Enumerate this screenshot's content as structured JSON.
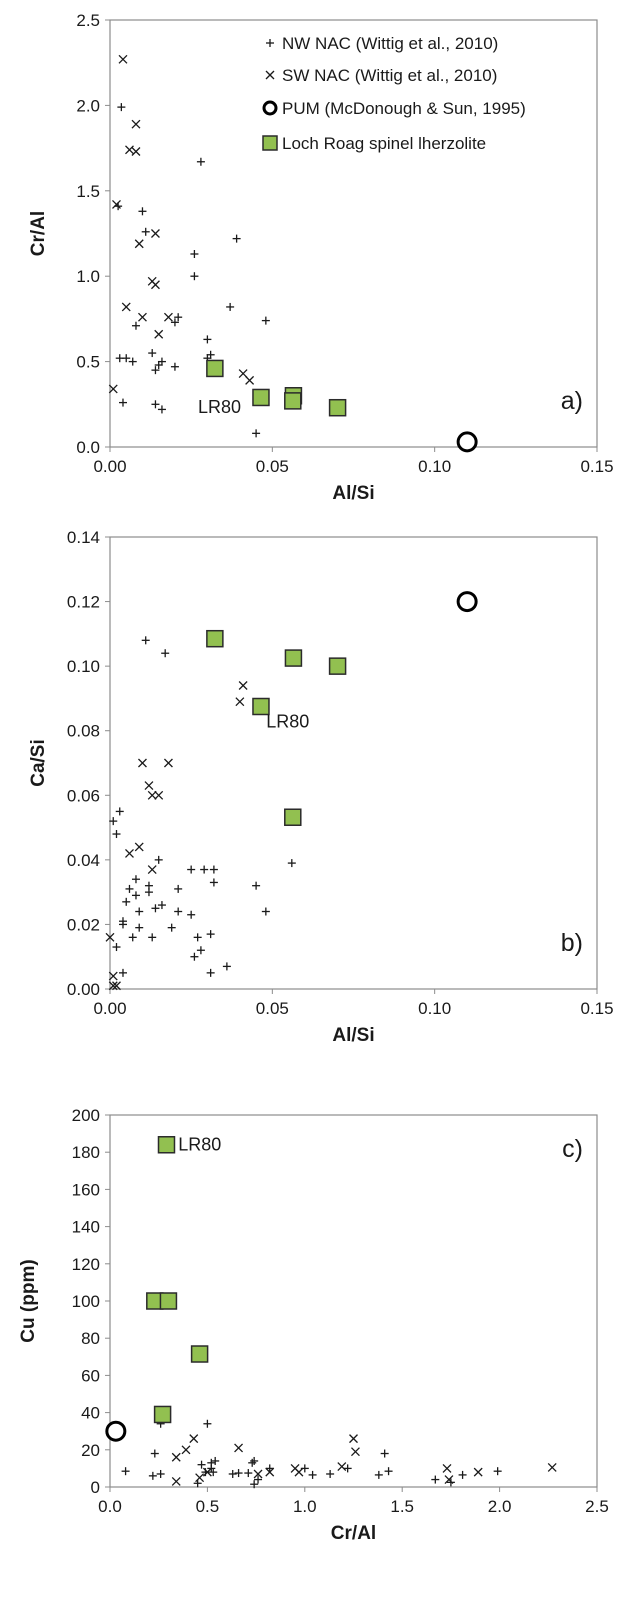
{
  "colors": {
    "frame": "#8c8c8c",
    "marker": "#1a1a1a",
    "lochFill": "#92c050",
    "lochStroke": "#2b2b2b"
  },
  "legend": {
    "nw": "NW NAC (Wittig et al., 2010)",
    "sw": "SW NAC (Wittig et al., 2010)",
    "pum": "PUM (McDonough & Sun, 1995)",
    "loch": "Loch Roag spinel lherzolite"
  },
  "chart_data": [
    {
      "type": "scatter",
      "panel_label": "a)",
      "xlabel": "Al/Si",
      "ylabel": "Cr/Al",
      "xlim": [
        0,
        0.15
      ],
      "ylim": [
        0,
        2.5
      ],
      "xticks": [
        "0.00",
        "0.05",
        "0.10",
        "0.15"
      ],
      "yticks": [
        "0.0",
        "0.5",
        "1.0",
        "1.5",
        "2.0",
        "2.5"
      ],
      "annotation": {
        "text": "LR80",
        "x": 0.0465,
        "y": 0.2
      },
      "legend_position": "top-right",
      "series": [
        {
          "name": "NW NAC (Wittig et al., 2010)",
          "marker": "plus",
          "points": [
            [
              0.0035,
              1.99
            ],
            [
              0.028,
              1.67
            ],
            [
              0.0025,
              1.41
            ],
            [
              0.01,
              1.38
            ],
            [
              0.039,
              1.22
            ],
            [
              0.011,
              1.26
            ],
            [
              0.026,
              1.13
            ],
            [
              0.026,
              1.0
            ],
            [
              0.037,
              0.82
            ],
            [
              0.048,
              0.74
            ],
            [
              0.021,
              0.76
            ],
            [
              0.02,
              0.73
            ],
            [
              0.03,
              0.63
            ],
            [
              0.008,
              0.71
            ],
            [
              0.031,
              0.54
            ],
            [
              0.013,
              0.55
            ],
            [
              0.02,
              0.47
            ],
            [
              0.015,
              0.48
            ],
            [
              0.016,
              0.5
            ],
            [
              0.003,
              0.52
            ],
            [
              0.005,
              0.52
            ],
            [
              0.014,
              0.45
            ],
            [
              0.007,
              0.5
            ],
            [
              0.03,
              0.52
            ],
            [
              0.004,
              0.26
            ],
            [
              0.014,
              0.25
            ],
            [
              0.016,
              0.22
            ],
            [
              0.045,
              0.08
            ],
            [
              0.057,
              0.26
            ]
          ]
        },
        {
          "name": "SW NAC (Wittig et al., 2010)",
          "marker": "cross",
          "points": [
            [
              0.004,
              2.27
            ],
            [
              0.008,
              1.89
            ],
            [
              0.006,
              1.74
            ],
            [
              0.008,
              1.73
            ],
            [
              0.002,
              1.42
            ],
            [
              0.014,
              1.25
            ],
            [
              0.009,
              1.19
            ],
            [
              0.013,
              0.97
            ],
            [
              0.014,
              0.95
            ],
            [
              0.005,
              0.82
            ],
            [
              0.01,
              0.76
            ],
            [
              0.018,
              0.76
            ],
            [
              0.015,
              0.66
            ],
            [
              0.041,
              0.43
            ],
            [
              0.043,
              0.39
            ],
            [
              0.001,
              0.34
            ]
          ]
        },
        {
          "name": "PUM (McDonough & Sun, 1995)",
          "marker": "circle",
          "points": [
            [
              0.11,
              0.03
            ]
          ]
        },
        {
          "name": "Loch Roag spinel lherzolite",
          "marker": "square",
          "points": [
            [
              0.0323,
              0.46
            ],
            [
              0.0465,
              0.29
            ],
            [
              0.0565,
              0.3
            ],
            [
              0.0563,
              0.27
            ],
            [
              0.0701,
              0.23
            ]
          ]
        }
      ]
    },
    {
      "type": "scatter",
      "panel_label": "b)",
      "xlabel": "Al/Si",
      "ylabel": "Ca/Si",
      "xlim": [
        0,
        0.15
      ],
      "ylim": [
        0,
        0.14
      ],
      "xticks": [
        "0.00",
        "0.05",
        "0.10",
        "0.15"
      ],
      "yticks": [
        "0.00",
        "0.02",
        "0.04",
        "0.06",
        "0.08",
        "0.10",
        "0.12",
        "0.14"
      ],
      "annotation": {
        "text": "LR80",
        "x": 0.0475,
        "y": 0.081
      },
      "series": [
        {
          "name": "NW NAC (Wittig et al., 2010)",
          "marker": "plus",
          "points": [
            [
              0.011,
              0.108
            ],
            [
              0.017,
              0.104
            ],
            [
              0.003,
              0.055
            ],
            [
              0.001,
              0.052
            ],
            [
              0.002,
              0.048
            ],
            [
              0.015,
              0.04
            ],
            [
              0.008,
              0.034
            ],
            [
              0.012,
              0.032
            ],
            [
              0.006,
              0.031
            ],
            [
              0.008,
              0.029
            ],
            [
              0.004,
              0.021
            ],
            [
              0.004,
              0.02
            ],
            [
              0.009,
              0.024
            ],
            [
              0.014,
              0.025
            ],
            [
              0.016,
              0.026
            ],
            [
              0.021,
              0.024
            ],
            [
              0.025,
              0.037
            ],
            [
              0.029,
              0.037
            ],
            [
              0.032,
              0.037
            ],
            [
              0.032,
              0.033
            ],
            [
              0.045,
              0.032
            ],
            [
              0.056,
              0.039
            ],
            [
              0.048,
              0.024
            ],
            [
              0.021,
              0.031
            ],
            [
              0.012,
              0.03
            ],
            [
              0.005,
              0.027
            ],
            [
              0.007,
              0.016
            ],
            [
              0.009,
              0.019
            ],
            [
              0.013,
              0.016
            ],
            [
              0.019,
              0.019
            ],
            [
              0.025,
              0.023
            ],
            [
              0.027,
              0.016
            ],
            [
              0.028,
              0.012
            ],
            [
              0.031,
              0.017
            ],
            [
              0.026,
              0.01
            ],
            [
              0.036,
              0.007
            ],
            [
              0.031,
              0.005
            ],
            [
              0.004,
              0.005
            ],
            [
              0.002,
              0.013
            ]
          ]
        },
        {
          "name": "SW NAC (Wittig et al., 2010)",
          "marker": "cross",
          "points": [
            [
              0.041,
              0.094
            ],
            [
              0.04,
              0.089
            ],
            [
              0.01,
              0.07
            ],
            [
              0.018,
              0.07
            ],
            [
              0.012,
              0.063
            ],
            [
              0.013,
              0.06
            ],
            [
              0.015,
              0.06
            ],
            [
              0.009,
              0.044
            ],
            [
              0.006,
              0.042
            ],
            [
              0.013,
              0.037
            ],
            [
              0.0,
              0.016
            ],
            [
              0.001,
              0.004
            ],
            [
              0.001,
              0.001
            ],
            [
              0.002,
              0.001
            ]
          ]
        },
        {
          "name": "PUM (McDonough & Sun, 1995)",
          "marker": "circle",
          "points": [
            [
              0.11,
              0.12
            ]
          ]
        },
        {
          "name": "Loch Roag spinel lherzolite",
          "marker": "square",
          "points": [
            [
              0.0323,
              0.1085
            ],
            [
              0.0565,
              0.1025
            ],
            [
              0.0465,
              0.0875
            ],
            [
              0.0701,
              0.1
            ],
            [
              0.0563,
              0.0532
            ]
          ]
        }
      ]
    },
    {
      "type": "scatter",
      "panel_label": "c)",
      "xlabel": "Cr/Al",
      "ylabel": "Cu (ppm)",
      "xlim": [
        0,
        2.5
      ],
      "ylim": [
        0,
        200
      ],
      "xticks": [
        "0.0",
        "0.5",
        "1.0",
        "1.5",
        "2.0",
        "2.5"
      ],
      "yticks": [
        "0",
        "20",
        "40",
        "60",
        "80",
        "100",
        "120",
        "140",
        "160",
        "180",
        "200"
      ],
      "annotation": {
        "text": "LR80",
        "x": 0.34,
        "y": 181
      },
      "series": [
        {
          "name": "NW NAC (Wittig et al., 2010)",
          "marker": "plus",
          "points": [
            [
              0.08,
              8.5
            ],
            [
              0.22,
              6
            ],
            [
              0.23,
              18
            ],
            [
              0.26,
              34
            ],
            [
              0.26,
              7
            ],
            [
              0.47,
              12
            ],
            [
              0.5,
              34
            ],
            [
              0.49,
              8
            ],
            [
              0.52,
              10
            ],
            [
              0.52,
              13
            ],
            [
              0.53,
              8
            ],
            [
              0.54,
              14
            ],
            [
              0.63,
              7
            ],
            [
              0.66,
              7.5
            ],
            [
              0.71,
              7.5
            ],
            [
              0.73,
              13
            ],
            [
              0.74,
              14
            ],
            [
              0.74,
              1.5
            ],
            [
              0.76,
              4
            ],
            [
              0.82,
              10
            ],
            [
              1.0,
              10
            ],
            [
              1.04,
              6.5
            ],
            [
              1.13,
              7
            ],
            [
              1.22,
              10
            ],
            [
              1.38,
              6.5
            ],
            [
              1.41,
              18
            ],
            [
              1.43,
              8.5
            ],
            [
              1.67,
              4
            ],
            [
              1.75,
              2.5
            ],
            [
              1.81,
              6.5
            ],
            [
              1.99,
              8.5
            ],
            [
              0.45,
              2
            ]
          ]
        },
        {
          "name": "SW NAC (Wittig et al., 2010)",
          "marker": "cross",
          "points": [
            [
              0.34,
              16
            ],
            [
              0.39,
              20
            ],
            [
              0.43,
              26
            ],
            [
              0.46,
              5
            ],
            [
              0.5,
              8
            ],
            [
              0.66,
              21
            ],
            [
              0.76,
              7
            ],
            [
              0.82,
              8
            ],
            [
              0.95,
              10
            ],
            [
              0.97,
              8
            ],
            [
              1.19,
              11
            ],
            [
              1.25,
              26
            ],
            [
              1.26,
              19
            ],
            [
              1.73,
              10
            ],
            [
              1.89,
              8
            ],
            [
              2.27,
              10.5
            ],
            [
              0.34,
              3
            ],
            [
              1.74,
              4
            ]
          ]
        },
        {
          "name": "PUM (McDonough & Sun, 1995)",
          "marker": "circle",
          "points": [
            [
              0.03,
              30
            ]
          ]
        },
        {
          "name": "Loch Roag spinel lherzolite",
          "marker": "square",
          "points": [
            [
              0.29,
              184
            ],
            [
              0.23,
              100
            ],
            [
              0.3,
              100
            ],
            [
              0.46,
              71.5
            ],
            [
              0.27,
              39
            ]
          ]
        }
      ]
    }
  ]
}
